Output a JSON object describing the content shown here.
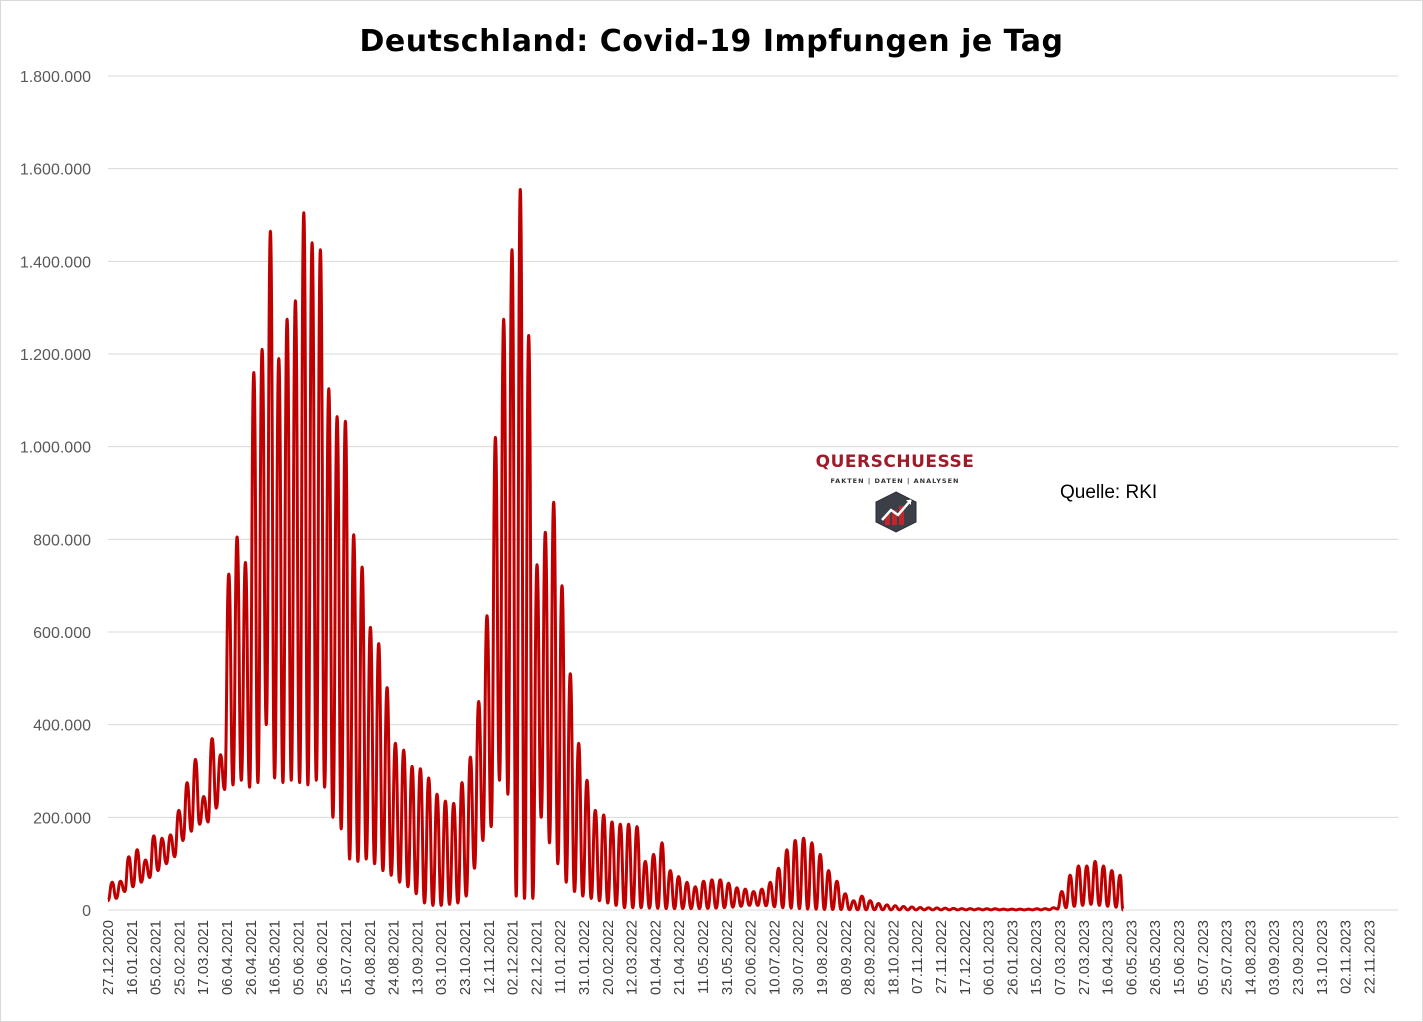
{
  "chart_data": {
    "type": "line",
    "title": "Deutschland: Covid-19 Impfungen je Tag",
    "xlabel": "",
    "ylabel": "",
    "ylim": [
      0,
      1800000
    ],
    "y_ticks": [
      {
        "value": 0,
        "label": "0"
      },
      {
        "value": 200000,
        "label": "200.000"
      },
      {
        "value": 400000,
        "label": "400.000"
      },
      {
        "value": 600000,
        "label": "600.000"
      },
      {
        "value": 800000,
        "label": "800.000"
      },
      {
        "value": 1000000,
        "label": "1.000.000"
      },
      {
        "value": 1200000,
        "label": "1.200.000"
      },
      {
        "value": 1400000,
        "label": "1.400.000"
      },
      {
        "value": 1600000,
        "label": "1.600.000"
      },
      {
        "value": 1800000,
        "label": "1.800.000"
      }
    ],
    "x_ticks": [
      "27.12.2020",
      "16.01.2021",
      "05.02.2021",
      "25.02.2021",
      "17.03.2021",
      "06.04.2021",
      "26.04.2021",
      "16.05.2021",
      "05.06.2021",
      "25.06.2021",
      "15.07.2021",
      "04.08.2021",
      "24.08.2021",
      "13.09.2021",
      "03.10.2021",
      "23.10.2021",
      "12.11.2021",
      "02.12.2021",
      "22.12.2021",
      "11.01.2022",
      "31.01.2022",
      "20.02.2022",
      "12.03.2022",
      "01.04.2022",
      "21.04.2022",
      "11.05.2022",
      "31.05.2022",
      "20.06.2022",
      "10.07.2022",
      "30.07.2022",
      "19.08.2022",
      "08.09.2022",
      "28.09.2022",
      "18.10.2022",
      "07.11.2022",
      "27.11.2022",
      "17.12.2022",
      "06.01.2023",
      "26.01.2023",
      "15.02.2023",
      "07.03.2023",
      "27.03.2023",
      "16.04.2023",
      "06.05.2023",
      "26.05.2023",
      "15.06.2023",
      "05.07.2023",
      "25.07.2023",
      "14.08.2023",
      "03.09.2023",
      "23.09.2023",
      "13.10.2023",
      "02.11.2023",
      "22.11.2023"
    ],
    "x_range": [
      "27.12.2020",
      "16.12.2023"
    ],
    "grid": true,
    "legend": "none",
    "series_color": "#c00000",
    "envelope_description": "weekly peaks (max) and weekend troughs (min), one pair per week",
    "series": [
      {
        "x_start": "27.12.2020",
        "step_days": 7,
        "weekly_peak": [
          60000,
          62000,
          115000,
          130000,
          108000,
          160000,
          155000,
          162000,
          215000,
          275000,
          325000,
          245000,
          370000,
          335000,
          725000,
          805000,
          750000,
          1160000,
          1210000,
          1465000,
          1190000,
          1275000,
          1315000,
          1505000,
          1440000,
          1425000,
          1125000,
          1065000,
          1055000,
          810000,
          740000,
          610000,
          575000,
          480000,
          360000,
          345000,
          310000,
          305000,
          285000,
          250000,
          235000,
          230000,
          275000,
          330000,
          450000,
          635000,
          1020000,
          1275000,
          1425000,
          1555000,
          1240000,
          745000,
          815000,
          880000,
          700000,
          510000,
          360000,
          280000,
          215000,
          205000,
          190000,
          185000,
          185000,
          180000,
          105000,
          120000,
          145000,
          85000,
          72000,
          60000,
          50000,
          62000,
          65000,
          65000,
          58000,
          48000,
          45000,
          40000,
          45000,
          60000,
          90000,
          130000,
          150000,
          155000,
          145000,
          120000,
          85000,
          62000,
          35000,
          20000,
          30000,
          20000,
          14000,
          11000,
          9000,
          7500,
          6500,
          5500,
          5000,
          4500,
          4000,
          3500,
          3000,
          3000,
          2500,
          2500,
          2500,
          2000,
          2000,
          2000,
          2000,
          2500,
          3000,
          5000,
          40000,
          75000,
          95000,
          95000,
          105000,
          95000,
          85000,
          75000
        ],
        "weekly_trough": [
          20000,
          25000,
          40000,
          50000,
          60000,
          70000,
          85000,
          100000,
          115000,
          150000,
          170000,
          185000,
          190000,
          220000,
          260000,
          270000,
          280000,
          265000,
          275000,
          400000,
          285000,
          275000,
          280000,
          275000,
          270000,
          280000,
          265000,
          200000,
          175000,
          110000,
          105000,
          110000,
          100000,
          85000,
          75000,
          60000,
          50000,
          35000,
          15000,
          10000,
          10000,
          12000,
          15000,
          30000,
          90000,
          150000,
          180000,
          280000,
          250000,
          30000,
          25000,
          25000,
          200000,
          145000,
          100000,
          60000,
          40000,
          30000,
          25000,
          20000,
          15000,
          10000,
          5000,
          5000,
          5000,
          4000,
          3500,
          3000,
          3000,
          3000,
          3000,
          3000,
          3500,
          4000,
          5000,
          6000,
          8000,
          10000,
          10000,
          9000,
          7000,
          5000,
          4000,
          3000,
          2000,
          1500,
          1000,
          1000,
          800,
          600,
          500,
          500,
          400,
          400,
          300,
          300,
          300,
          300,
          300,
          300,
          300,
          300,
          300,
          300,
          300,
          300,
          300,
          300,
          300,
          300,
          300,
          300,
          300,
          400,
          2000,
          5000,
          8000,
          10000,
          12000,
          10000,
          8000,
          6000
        ]
      }
    ]
  },
  "watermark": {
    "name": "QUERSCHUESSE",
    "tagline": "FAKTEN | DATEN | ANALYSEN"
  },
  "source_note": "Quelle:  RKI"
}
